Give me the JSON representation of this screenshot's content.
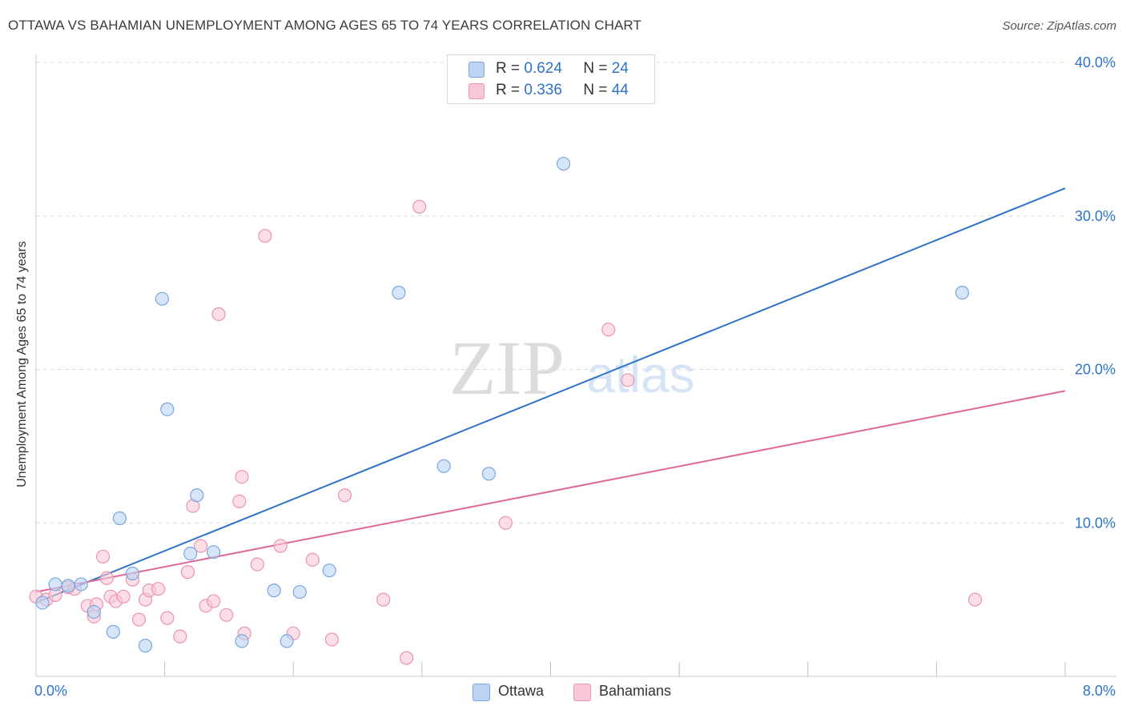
{
  "header": {
    "title": "OTTAWA VS BAHAMIAN UNEMPLOYMENT AMONG AGES 65 TO 74 YEARS CORRELATION CHART",
    "source": "Source: ZipAtlas.com"
  },
  "watermark": {
    "zip": "ZIP",
    "atlas": "atlas"
  },
  "legend_top": [
    {
      "series": "Ottawa",
      "r_label": "R =",
      "r_value": "0.624",
      "n_label": "N =",
      "n_value": "24"
    },
    {
      "series": "Bahamians",
      "r_label": "R =",
      "r_value": "0.336",
      "n_label": "N =",
      "n_value": "44"
    }
  ],
  "colors": {
    "ottawa_fill": "#bcd4f4",
    "ottawa_stroke": "#7aa6e0",
    "ottawa_line": "#2f73c9",
    "bahamians_fill": "#f9c8d6",
    "bahamians_stroke": "#eb94b0",
    "bahamians_line": "#e0679a",
    "axis_label": "#2f73c9",
    "grid": "#dddddd"
  },
  "chart_data": {
    "type": "scatter",
    "xlabel": "",
    "ylabel": "Unemployment Among Ages 65 to 74 years",
    "xlim": [
      0,
      8
    ],
    "ylim": [
      0,
      40
    ],
    "x_tick_labels": [
      {
        "value": 0,
        "label": "0.0%"
      },
      {
        "value": 8,
        "label": "8.0%"
      }
    ],
    "y_tick_labels": [
      {
        "value": 10,
        "label": "10.0%"
      },
      {
        "value": 20,
        "label": "20.0%"
      },
      {
        "value": 30,
        "label": "30.0%"
      },
      {
        "value": 40,
        "label": "40.0%"
      }
    ],
    "grid": true,
    "legend_position": "top-center",
    "series": [
      {
        "name": "Ottawa",
        "points": [
          [
            0.05,
            4.8
          ],
          [
            0.15,
            6.0
          ],
          [
            0.25,
            5.9
          ],
          [
            0.35,
            6.0
          ],
          [
            0.45,
            4.2
          ],
          [
            0.6,
            2.9
          ],
          [
            0.65,
            10.3
          ],
          [
            0.75,
            6.7
          ],
          [
            0.85,
            2.0
          ],
          [
            0.98,
            24.6
          ],
          [
            1.02,
            17.4
          ],
          [
            1.2,
            8.0
          ],
          [
            1.25,
            11.8
          ],
          [
            1.38,
            8.1
          ],
          [
            1.6,
            2.3
          ],
          [
            1.85,
            5.6
          ],
          [
            1.95,
            2.3
          ],
          [
            2.05,
            5.5
          ],
          [
            2.28,
            6.9
          ],
          [
            2.82,
            25.0
          ],
          [
            3.17,
            13.7
          ],
          [
            3.52,
            13.2
          ],
          [
            4.1,
            33.4
          ],
          [
            7.2,
            25.0
          ]
        ],
        "trend": {
          "x": [
            0,
            8
          ],
          "y": [
            4.8,
            31.8
          ]
        }
      },
      {
        "name": "Bahamians",
        "points": [
          [
            0.0,
            5.2
          ],
          [
            0.08,
            5.0
          ],
          [
            0.15,
            5.3
          ],
          [
            0.25,
            5.8
          ],
          [
            0.3,
            5.7
          ],
          [
            0.4,
            4.6
          ],
          [
            0.45,
            3.9
          ],
          [
            0.47,
            4.7
          ],
          [
            0.52,
            7.8
          ],
          [
            0.55,
            6.4
          ],
          [
            0.58,
            5.2
          ],
          [
            0.62,
            4.9
          ],
          [
            0.68,
            5.2
          ],
          [
            0.75,
            6.3
          ],
          [
            0.8,
            3.7
          ],
          [
            0.85,
            5.0
          ],
          [
            0.88,
            5.6
          ],
          [
            0.95,
            5.7
          ],
          [
            1.02,
            3.8
          ],
          [
            1.12,
            2.6
          ],
          [
            1.18,
            6.8
          ],
          [
            1.22,
            11.1
          ],
          [
            1.28,
            8.5
          ],
          [
            1.32,
            4.6
          ],
          [
            1.38,
            4.9
          ],
          [
            1.42,
            23.6
          ],
          [
            1.48,
            4.0
          ],
          [
            1.58,
            11.4
          ],
          [
            1.6,
            13.0
          ],
          [
            1.62,
            2.8
          ],
          [
            1.72,
            7.3
          ],
          [
            1.78,
            28.7
          ],
          [
            1.9,
            8.5
          ],
          [
            2.0,
            2.8
          ],
          [
            2.15,
            7.6
          ],
          [
            2.3,
            2.4
          ],
          [
            2.4,
            11.8
          ],
          [
            2.7,
            5.0
          ],
          [
            2.88,
            1.2
          ],
          [
            2.98,
            30.6
          ],
          [
            3.65,
            10.0
          ],
          [
            4.45,
            22.6
          ],
          [
            4.6,
            19.3
          ],
          [
            7.3,
            5.0
          ]
        ],
        "trend": {
          "x": [
            0,
            8
          ],
          "y": [
            5.5,
            18.6
          ]
        }
      }
    ]
  },
  "legend_bottom": [
    {
      "series": "Ottawa",
      "label": "Ottawa"
    },
    {
      "series": "Bahamians",
      "label": "Bahamians"
    }
  ]
}
